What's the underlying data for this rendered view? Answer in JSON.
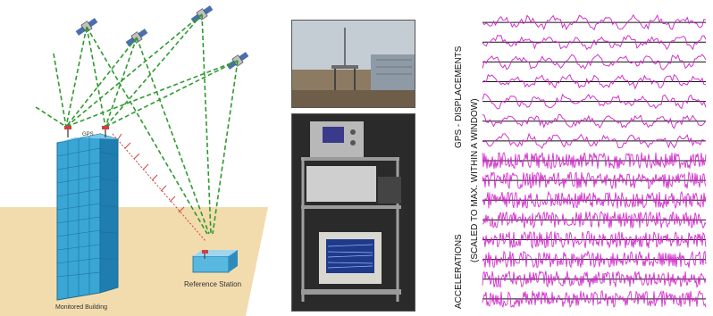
{
  "diagram": {
    "building_label": "Monitored Building",
    "reference_label": "Reference Station",
    "rover_label": "GPS"
  },
  "traces": {
    "gps_label": "GPS - DISPLACEMENTS",
    "scaled_label": "(SCALED TO MAX. WITHIN A WINDOW)",
    "accel_label": "ACCELERATIONS",
    "gps_count": 7,
    "accel_count": 8,
    "trace_color": "#d020c8"
  },
  "colors": {
    "link_green": "#2f9a2f",
    "building": "#3aa6d6",
    "ground": "#f0d8a8",
    "radio_red": "#d04040"
  },
  "icons": [
    "satellite-icon",
    "gps-antenna-icon",
    "reference-station-icon"
  ]
}
